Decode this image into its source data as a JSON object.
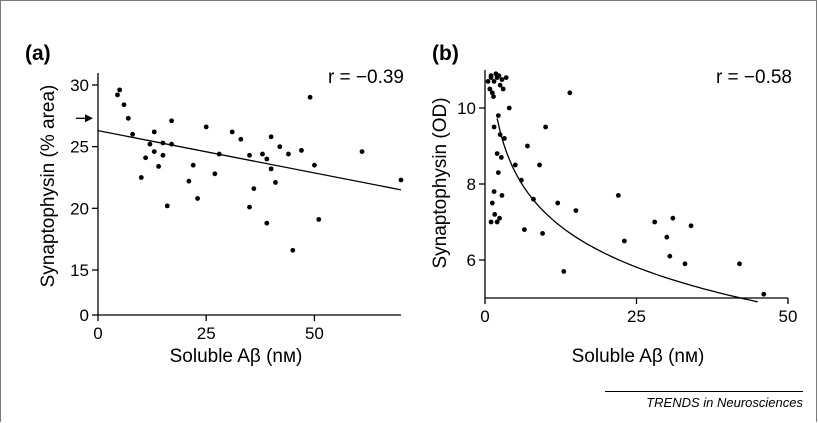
{
  "credit": "TRENDS in Neurosciences",
  "chart_data": [
    {
      "type": "scatter",
      "panel": "(a)",
      "annotation": "r = −0.39",
      "xlabel": "Soluble Aβ (nᴍ)",
      "ylabel": "Synaptophysin (% area)",
      "xlim": [
        0,
        70
      ],
      "ylim": [
        0,
        31
      ],
      "y_axis_break": true,
      "xticks": [
        0,
        25,
        50
      ],
      "yticks": [
        0,
        15,
        20,
        25,
        30
      ],
      "arrow_marker_y": 27.3,
      "points": [
        [
          4.5,
          29.2
        ],
        [
          5,
          29.6
        ],
        [
          6,
          28.4
        ],
        [
          7,
          27.3
        ],
        [
          8,
          26
        ],
        [
          10,
          22.5
        ],
        [
          11,
          24.1
        ],
        [
          12,
          25.2
        ],
        [
          13,
          26.2
        ],
        [
          13,
          24.6
        ],
        [
          14,
          23.4
        ],
        [
          15,
          25.3
        ],
        [
          15,
          24.3
        ],
        [
          16,
          20.2
        ],
        [
          17,
          27.1
        ],
        [
          17,
          25.2
        ],
        [
          21,
          22.2
        ],
        [
          22,
          23.5
        ],
        [
          23,
          20.8
        ],
        [
          25,
          26.6
        ],
        [
          27,
          22.8
        ],
        [
          28,
          24.4
        ],
        [
          31,
          26.2
        ],
        [
          33,
          25.6
        ],
        [
          35,
          24.3
        ],
        [
          35,
          20.1
        ],
        [
          36,
          21.6
        ],
        [
          38,
          24.4
        ],
        [
          39,
          18.8
        ],
        [
          39,
          24
        ],
        [
          40,
          23.2
        ],
        [
          40,
          25.8
        ],
        [
          41,
          22.1
        ],
        [
          42,
          25
        ],
        [
          44,
          24.4
        ],
        [
          45,
          16.6
        ],
        [
          47,
          24.7
        ],
        [
          49,
          29
        ],
        [
          50,
          23.5
        ],
        [
          51,
          19.1
        ],
        [
          61,
          24.6
        ],
        [
          70,
          22.3
        ]
      ],
      "fit_line": [
        [
          0,
          26.3
        ],
        [
          72,
          21.5
        ]
      ]
    },
    {
      "type": "scatter",
      "panel": "(b)",
      "annotation": "r = −0.58",
      "xlabel": "Soluble Aβ (nᴍ)",
      "ylabel": "Synaptophysin (OD)",
      "xlim": [
        0,
        50
      ],
      "ylim": [
        5,
        11
      ],
      "xticks": [
        0,
        25,
        50
      ],
      "yticks": [
        6,
        8,
        10
      ],
      "points": [
        [
          0.5,
          10.7
        ],
        [
          0.8,
          10.5
        ],
        [
          1,
          10.8
        ],
        [
          1.2,
          10.4
        ],
        [
          1.5,
          10.7
        ],
        [
          2,
          10.8
        ],
        [
          2.5,
          10.6
        ],
        [
          3,
          10.5
        ],
        [
          3.5,
          10.8
        ],
        [
          1,
          10.85
        ],
        [
          1.8,
          10.9
        ],
        [
          2.3,
          10.85
        ],
        [
          1.4,
          10.3
        ],
        [
          2.8,
          10.75
        ],
        [
          4,
          10
        ],
        [
          2.2,
          9.8
        ],
        [
          1.5,
          9.5
        ],
        [
          2.5,
          9.3
        ],
        [
          3.2,
          9.2
        ],
        [
          2,
          8.8
        ],
        [
          2.7,
          8.7
        ],
        [
          2.2,
          8.3
        ],
        [
          1.5,
          7.8
        ],
        [
          2.8,
          7.7
        ],
        [
          1.2,
          7.5
        ],
        [
          1.6,
          7.2
        ],
        [
          2.4,
          7.1
        ],
        [
          2,
          7
        ],
        [
          1,
          7
        ],
        [
          5,
          8.5
        ],
        [
          6,
          8.1
        ],
        [
          7,
          9
        ],
        [
          8,
          7.6
        ],
        [
          10,
          9.5
        ],
        [
          9,
          8.5
        ],
        [
          6.5,
          6.8
        ],
        [
          9.5,
          6.7
        ],
        [
          12,
          7.5
        ],
        [
          13,
          5.7
        ],
        [
          14,
          10.4
        ],
        [
          15,
          7.3
        ],
        [
          22,
          7.7
        ],
        [
          23,
          6.5
        ],
        [
          28,
          7
        ],
        [
          30,
          6.6
        ],
        [
          31,
          7.1
        ],
        [
          30.5,
          6.1
        ],
        [
          33,
          5.9
        ],
        [
          34,
          6.9
        ],
        [
          42,
          5.9
        ],
        [
          46,
          5.1
        ]
      ],
      "fit_curve": {
        "form": "a + b*ln(x)",
        "a": 10.8,
        "b": -1.55,
        "x_range": [
          2,
          45
        ]
      }
    }
  ]
}
